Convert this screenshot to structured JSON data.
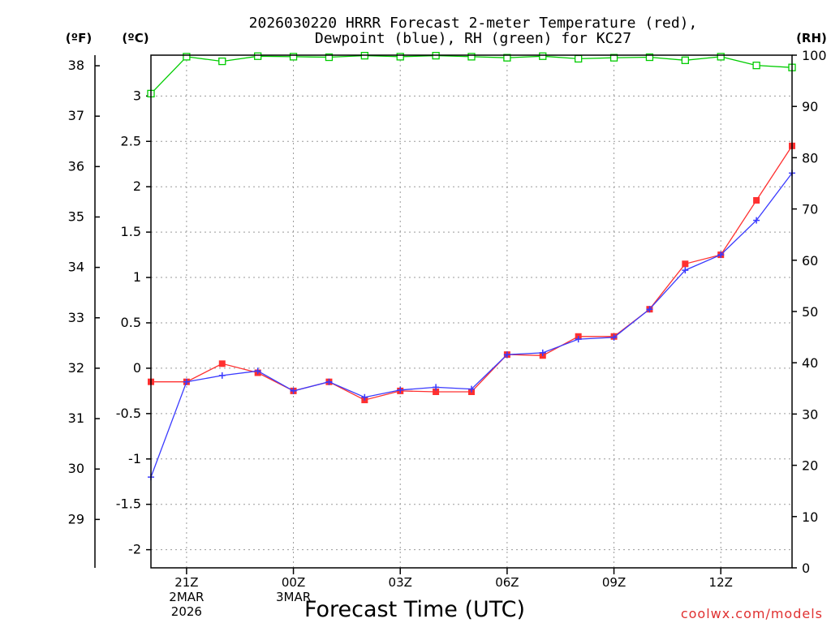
{
  "chart_data": {
    "type": "line",
    "title_line1": "2026030220 HRRR Forecast 2-meter Temperature (red),",
    "title_line2": "Dewpoint (blue), RH (green) for KC27",
    "xlabel": "Forecast Time (UTC)",
    "watermark": "coolwx.com/models",
    "unit_f": "(ºF)",
    "unit_c": "(ºC)",
    "unit_rh": "(RH)",
    "x_hours": [
      0,
      1,
      2,
      3,
      4,
      5,
      6,
      7,
      8,
      9,
      10,
      11,
      12,
      13,
      14,
      15,
      16,
      17,
      18
    ],
    "x_range": [
      0,
      18
    ],
    "celsius_range": [
      -2.2,
      3.45
    ],
    "rh_range": [
      0,
      100
    ],
    "x_ticks": [
      {
        "hour": 1,
        "label": "21Z",
        "sub1": "2MAR",
        "sub2": "2026"
      },
      {
        "hour": 4,
        "label": "00Z",
        "sub1": "3MAR",
        "sub2": ""
      },
      {
        "hour": 7,
        "label": "03Z",
        "sub1": "",
        "sub2": ""
      },
      {
        "hour": 10,
        "label": "06Z",
        "sub1": "",
        "sub2": ""
      },
      {
        "hour": 13,
        "label": "09Z",
        "sub1": "",
        "sub2": ""
      },
      {
        "hour": 16,
        "label": "12Z",
        "sub1": "",
        "sub2": ""
      }
    ],
    "y_ticks_c": [
      "-2",
      "-1.5",
      "-1",
      "-0.5",
      "0",
      "0.5",
      "1",
      "1.5",
      "2",
      "2.5",
      "3"
    ],
    "y_ticks_f": [
      "29",
      "30",
      "31",
      "32",
      "33",
      "34",
      "35",
      "36",
      "37",
      "38"
    ],
    "y_ticks_rh": [
      "0",
      "10",
      "20",
      "30",
      "40",
      "50",
      "60",
      "70",
      "80",
      "90",
      "100"
    ],
    "series": [
      {
        "name": "Temperature",
        "color": "#ff3030",
        "marker": "square",
        "values": [
          -0.15,
          -0.15,
          0.05,
          -0.05,
          -0.25,
          -0.15,
          -0.35,
          -0.25,
          -0.26,
          -0.26,
          0.15,
          0.14,
          0.35,
          0.35,
          0.65,
          1.15,
          1.25,
          1.85,
          2.45
        ]
      },
      {
        "name": "Dewpoint",
        "color": "#3a3aff",
        "marker": "plus",
        "values": [
          -1.2,
          -0.15,
          -0.08,
          -0.03,
          -0.25,
          -0.15,
          -0.32,
          -0.24,
          -0.21,
          -0.23,
          0.15,
          0.17,
          0.32,
          0.34,
          0.65,
          1.08,
          1.25,
          1.63,
          2.15
        ]
      },
      {
        "name": "RH",
        "color": "#00cc00",
        "marker": "open-square",
        "axis": "rh",
        "values": [
          92.5,
          99.7,
          98.8,
          99.8,
          99.7,
          99.6,
          99.9,
          99.7,
          99.9,
          99.7,
          99.5,
          99.8,
          99.3,
          99.5,
          99.6,
          99.0,
          99.7,
          98.0,
          97.6
        ]
      }
    ]
  }
}
